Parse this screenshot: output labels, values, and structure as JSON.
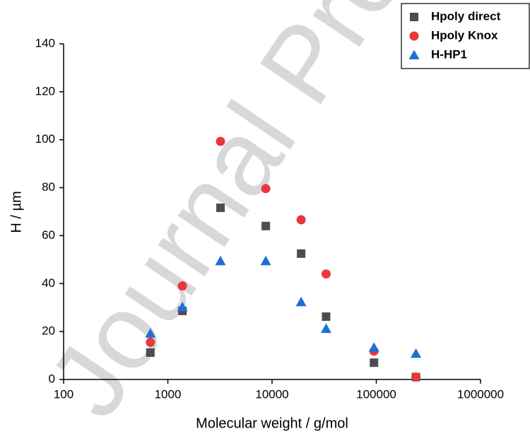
{
  "chart_data": {
    "type": "scatter",
    "watermark": "Journal Pre",
    "xlabel": "Molecular weight / g/mol",
    "ylabel": "H / µm",
    "x": [
      680,
      1380,
      3200,
      8700,
      19000,
      33000,
      95000,
      240000
    ],
    "series": [
      {
        "name": "Hpoly direct",
        "color": "#4d4d4d",
        "marker": "square",
        "values": [
          11.2,
          28.6,
          71.6,
          64,
          52.5,
          26.2,
          7,
          1
        ]
      },
      {
        "name": "Hpoly Knox",
        "color": "#e8383d",
        "marker": "circle",
        "values": [
          15.5,
          39,
          99.3,
          79.6,
          66.6,
          44,
          11.8,
          1
        ]
      },
      {
        "name": "H-HP1",
        "color": "#1f6fd6",
        "marker": "triangle",
        "values": [
          19.2,
          30.2,
          49.4,
          49.4,
          32.3,
          21.2,
          13.3,
          10.8
        ]
      }
    ],
    "xscale": "log",
    "xlim": [
      100,
      1000000
    ],
    "xticks": [
      100,
      1000,
      10000,
      100000,
      1000000
    ],
    "ylim": [
      0,
      140
    ],
    "yticks": [
      0,
      20,
      40,
      60,
      80,
      100,
      120,
      140
    ],
    "legend": "upper right"
  }
}
